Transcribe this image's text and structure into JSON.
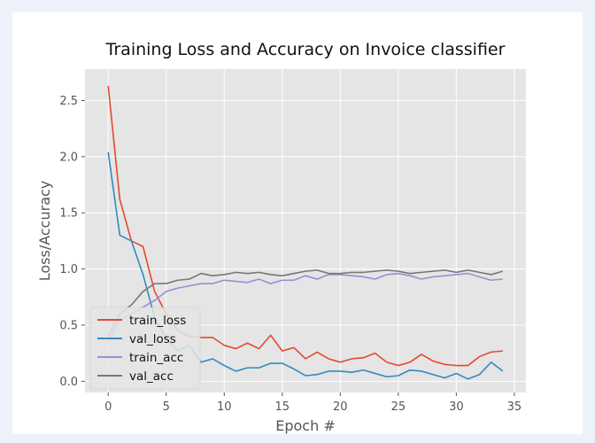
{
  "chart_data": {
    "type": "line",
    "title": "Training Loss and Accuracy on Invoice classifier",
    "xlabel": "Epoch #",
    "ylabel": "Loss/Accuracy",
    "xlim": [
      -2,
      36
    ],
    "ylim": [
      -0.1,
      2.78
    ],
    "xticks": [
      0,
      5,
      10,
      15,
      20,
      25,
      30,
      35
    ],
    "yticks": [
      0.0,
      0.5,
      1.0,
      1.5,
      2.0,
      2.5
    ],
    "xtick_labels": [
      "0",
      "5",
      "10",
      "15",
      "20",
      "25",
      "30",
      "35"
    ],
    "ytick_labels": [
      "0.0",
      "0.5",
      "1.0",
      "1.5",
      "2.0",
      "2.5"
    ],
    "grid": true,
    "legend_position": "lower-left",
    "style": "ggplot",
    "x": [
      0,
      1,
      2,
      3,
      4,
      5,
      6,
      7,
      8,
      9,
      10,
      11,
      12,
      13,
      14,
      15,
      16,
      17,
      18,
      19,
      20,
      21,
      22,
      23,
      24,
      25,
      26,
      27,
      28,
      29,
      30,
      31,
      32,
      33,
      34
    ],
    "series": [
      {
        "name": "train_loss",
        "color": "#e24a33",
        "values": [
          2.63,
          1.62,
          1.25,
          1.2,
          0.8,
          0.6,
          0.45,
          0.4,
          0.39,
          0.39,
          0.32,
          0.29,
          0.34,
          0.29,
          0.41,
          0.27,
          0.3,
          0.2,
          0.26,
          0.2,
          0.17,
          0.2,
          0.21,
          0.25,
          0.17,
          0.14,
          0.17,
          0.24,
          0.18,
          0.15,
          0.14,
          0.14,
          0.22,
          0.26,
          0.27
        ]
      },
      {
        "name": "val_loss",
        "color": "#348abd",
        "values": [
          2.04,
          1.3,
          1.25,
          0.95,
          0.57,
          0.38,
          0.27,
          0.32,
          0.17,
          0.2,
          0.14,
          0.09,
          0.12,
          0.12,
          0.16,
          0.16,
          0.11,
          0.05,
          0.06,
          0.09,
          0.09,
          0.08,
          0.1,
          0.07,
          0.04,
          0.05,
          0.1,
          0.09,
          0.06,
          0.03,
          0.07,
          0.02,
          0.06,
          0.17,
          0.09
        ]
      },
      {
        "name": "train_acc",
        "color": "#988ed5",
        "values": [
          0.35,
          0.55,
          0.6,
          0.66,
          0.72,
          0.8,
          0.83,
          0.85,
          0.87,
          0.87,
          0.9,
          0.89,
          0.88,
          0.91,
          0.87,
          0.9,
          0.9,
          0.94,
          0.91,
          0.95,
          0.95,
          0.94,
          0.93,
          0.91,
          0.95,
          0.96,
          0.94,
          0.91,
          0.93,
          0.94,
          0.95,
          0.96,
          0.93,
          0.9,
          0.91
        ]
      },
      {
        "name": "val_acc",
        "color": "#777777",
        "values": [
          0.4,
          0.6,
          0.68,
          0.8,
          0.87,
          0.87,
          0.9,
          0.91,
          0.96,
          0.94,
          0.95,
          0.97,
          0.96,
          0.97,
          0.95,
          0.94,
          0.96,
          0.98,
          0.99,
          0.96,
          0.96,
          0.97,
          0.97,
          0.98,
          0.99,
          0.98,
          0.96,
          0.97,
          0.98,
          0.99,
          0.97,
          0.99,
          0.97,
          0.95,
          0.98
        ]
      }
    ]
  }
}
